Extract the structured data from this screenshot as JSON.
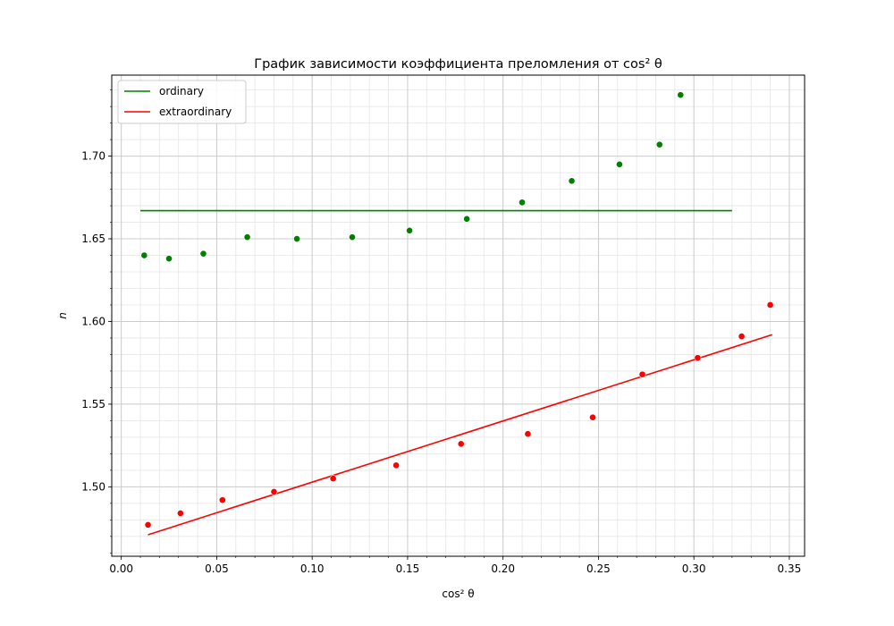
{
  "chart_data": {
    "type": "scatter",
    "title": "График зависимости коэффициента преломления от cos² θ",
    "xlabel": "cos² θ",
    "ylabel": "n",
    "xlim": [
      -0.005,
      0.358
    ],
    "ylim": [
      1.458,
      1.749
    ],
    "xticks": [
      "0.00",
      "0.05",
      "0.10",
      "0.15",
      "0.20",
      "0.25",
      "0.30",
      "0.35"
    ],
    "yticks": [
      "1.50",
      "1.55",
      "1.60",
      "1.65",
      "1.70"
    ],
    "grid": true,
    "legend_position": "top-left",
    "series": [
      {
        "name": "ordinary",
        "color": "#008000",
        "line": {
          "x": [
            0.01,
            0.32
          ],
          "y": [
            1.667,
            1.667
          ]
        },
        "points": [
          {
            "x": 0.012,
            "y": 1.64
          },
          {
            "x": 0.025,
            "y": 1.638
          },
          {
            "x": 0.043,
            "y": 1.641
          },
          {
            "x": 0.066,
            "y": 1.651
          },
          {
            "x": 0.092,
            "y": 1.65
          },
          {
            "x": 0.121,
            "y": 1.651
          },
          {
            "x": 0.151,
            "y": 1.655
          },
          {
            "x": 0.181,
            "y": 1.662
          },
          {
            "x": 0.21,
            "y": 1.672
          },
          {
            "x": 0.236,
            "y": 1.685
          },
          {
            "x": 0.261,
            "y": 1.695
          },
          {
            "x": 0.282,
            "y": 1.707
          },
          {
            "x": 0.293,
            "y": 1.737
          }
        ]
      },
      {
        "name": "extraordinary",
        "color": "#ff0000",
        "line": {
          "x": [
            0.014,
            0.341
          ],
          "y": [
            1.471,
            1.592
          ]
        },
        "points": [
          {
            "x": 0.014,
            "y": 1.477
          },
          {
            "x": 0.031,
            "y": 1.484
          },
          {
            "x": 0.053,
            "y": 1.492
          },
          {
            "x": 0.08,
            "y": 1.497
          },
          {
            "x": 0.111,
            "y": 1.505
          },
          {
            "x": 0.144,
            "y": 1.513
          },
          {
            "x": 0.178,
            "y": 1.526
          },
          {
            "x": 0.213,
            "y": 1.532
          },
          {
            "x": 0.247,
            "y": 1.542
          },
          {
            "x": 0.273,
            "y": 1.568
          },
          {
            "x": 0.302,
            "y": 1.578
          },
          {
            "x": 0.325,
            "y": 1.591
          },
          {
            "x": 0.34,
            "y": 1.61
          }
        ]
      }
    ]
  }
}
